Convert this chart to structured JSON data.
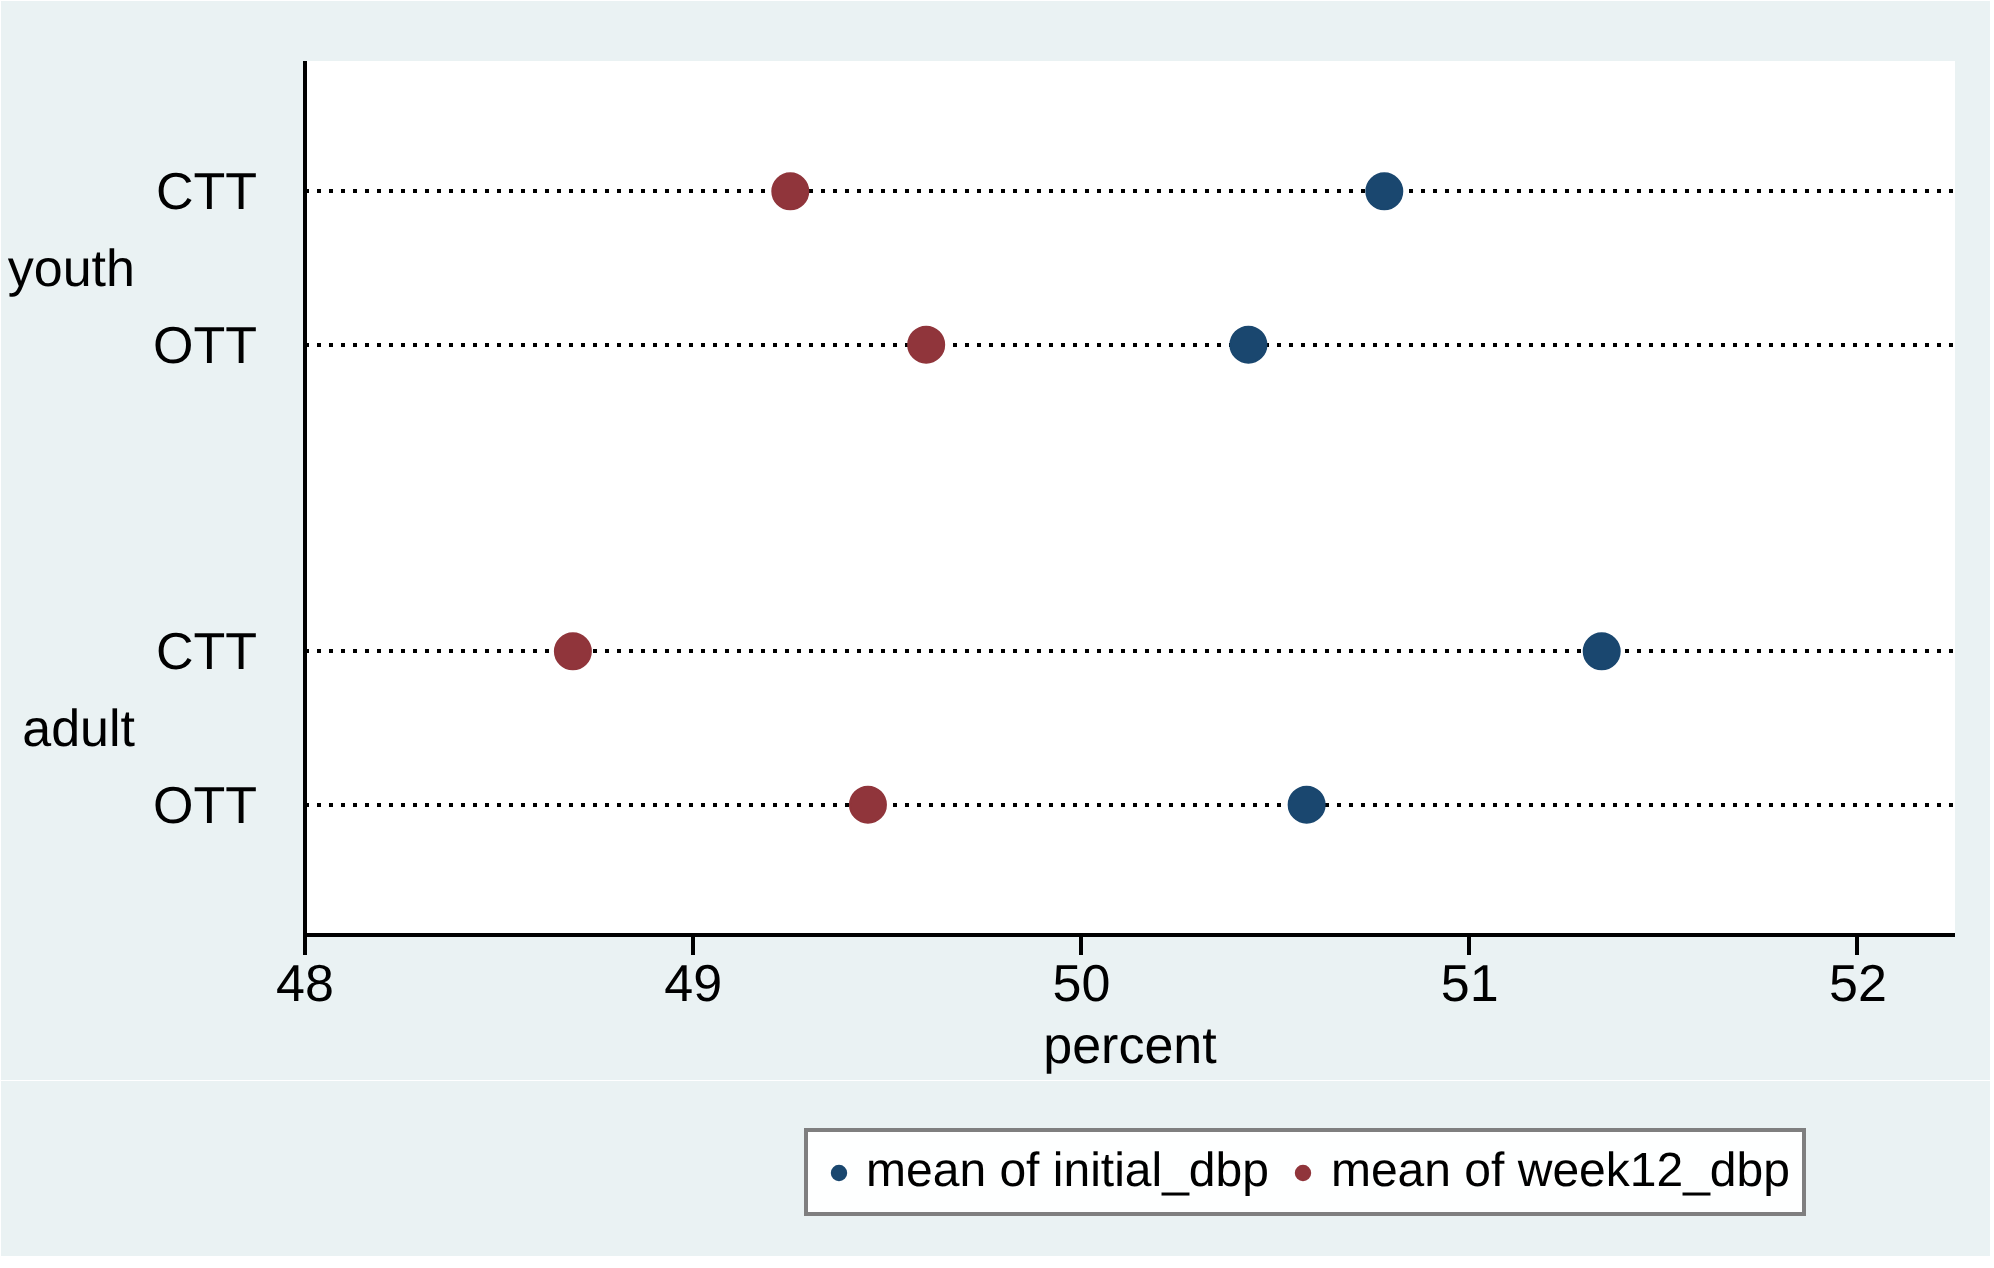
{
  "chart_data": {
    "type": "scatter",
    "orientation": "horizontal",
    "categories": [
      "CTT",
      "OTT",
      null,
      "CTT",
      "OTT"
    ],
    "annotations": [
      "youth",
      "adult"
    ],
    "series": [
      {
        "name": "mean of initial_dbp",
        "color": "#1a476f",
        "values": [
          50.78,
          50.43,
          null,
          51.34,
          50.58
        ]
      },
      {
        "name": "mean of week12_dbp",
        "color": "#90353b",
        "values": [
          49.25,
          49.6,
          null,
          48.69,
          49.45
        ]
      }
    ],
    "xlabel": "percent",
    "xlim": [
      48,
      52.25
    ],
    "xticks": [
      48,
      49,
      50,
      51,
      52
    ],
    "grid": "y",
    "line_style": "dotted",
    "marker": "circle",
    "legend": "bottom"
  }
}
